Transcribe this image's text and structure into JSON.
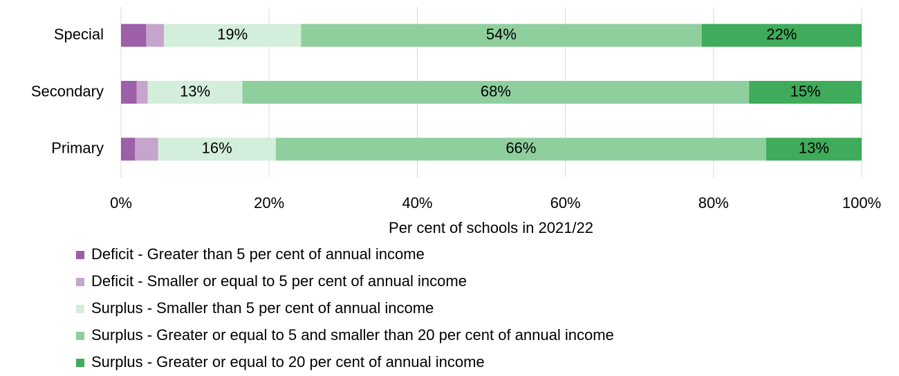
{
  "chart_data": {
    "type": "stacked-bar-horizontal",
    "xlabel": "Per cent of schools in 2021/22",
    "categories": [
      "Special",
      "Secondary",
      "Primary"
    ],
    "series": [
      {
        "name": "Deficit - Greater than 5 per cent of annual income",
        "color": "#9c5fa8",
        "values": [
          3.4,
          2.1,
          1.9
        ],
        "value_labels": [
          null,
          null,
          null
        ]
      },
      {
        "name": "Deficit - Smaller or equal to 5 per cent of annual income",
        "color": "#c6a5cd",
        "values": [
          2.4,
          1.5,
          3.1
        ],
        "value_labels": [
          null,
          null,
          null
        ]
      },
      {
        "name": "Surplus - Smaller than 5 per cent of annual income",
        "color": "#d3eedb",
        "values": [
          18.5,
          12.8,
          15.9
        ],
        "value_labels": [
          "19%",
          "13%",
          "16%"
        ]
      },
      {
        "name": "Surplus - Greater or equal to 5 and smaller than 20 per cent of annual income",
        "color": "#8fcf9e",
        "values": [
          54.1,
          68.4,
          66.2
        ],
        "value_labels": [
          "54%",
          "68%",
          "66%"
        ]
      },
      {
        "name": "Surplus - Greater or equal to 20 per cent of annual income",
        "color": "#3fab5b",
        "values": [
          21.6,
          15.2,
          12.9
        ],
        "value_labels": [
          "22%",
          "15%",
          "13%"
        ]
      }
    ],
    "xlim": [
      0,
      100
    ],
    "xticks": [
      {
        "value": 0,
        "label": "0%"
      },
      {
        "value": 20,
        "label": "20%"
      },
      {
        "value": 40,
        "label": "40%"
      },
      {
        "value": 60,
        "label": "60%"
      },
      {
        "value": 80,
        "label": "80%"
      },
      {
        "value": 100,
        "label": "100%"
      }
    ],
    "grid": true
  }
}
